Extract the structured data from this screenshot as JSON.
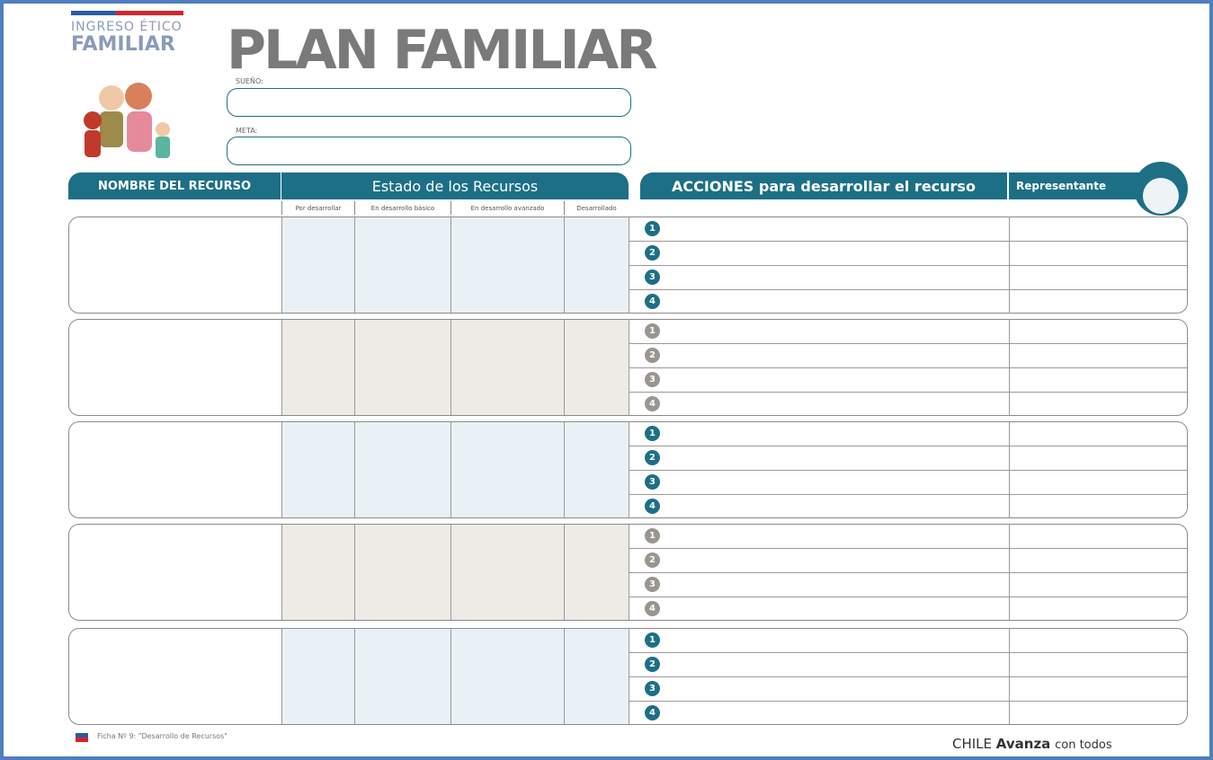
{
  "logo": {
    "line1": "INGRESO ÉTICO",
    "line2": "FAMILIAR"
  },
  "title": "PLAN FAMILIAR",
  "fields": {
    "dream": "SUEÑO:",
    "goal": "META:"
  },
  "table": {
    "headers": {
      "resource": "NOMBRE DEL RECURSO",
      "status": "Estado de los Recursos",
      "actions": "ACCIONES para desarrollar el recurso",
      "representative": "Representante"
    },
    "status_levels": [
      "Por desarrollar",
      "En desarrollo básico",
      "En desarrollo avanzado",
      "Desarrollado"
    ],
    "rows": [
      {
        "actions": [
          "1",
          "2",
          "3",
          "4"
        ]
      },
      {
        "actions": [
          "1",
          "2",
          "3",
          "4"
        ]
      },
      {
        "actions": [
          "1",
          "2",
          "3",
          "4"
        ]
      },
      {
        "actions": [
          "1",
          "2",
          "3",
          "4"
        ]
      },
      {
        "actions": [
          "1",
          "2",
          "3",
          "4"
        ]
      }
    ]
  },
  "footer": {
    "note": "Ficha Nº 9: \"Desarrollo de Recursos\"",
    "brand": "CHILE",
    "brand_bold": "Avanza",
    "brand_tail": "con todos"
  }
}
